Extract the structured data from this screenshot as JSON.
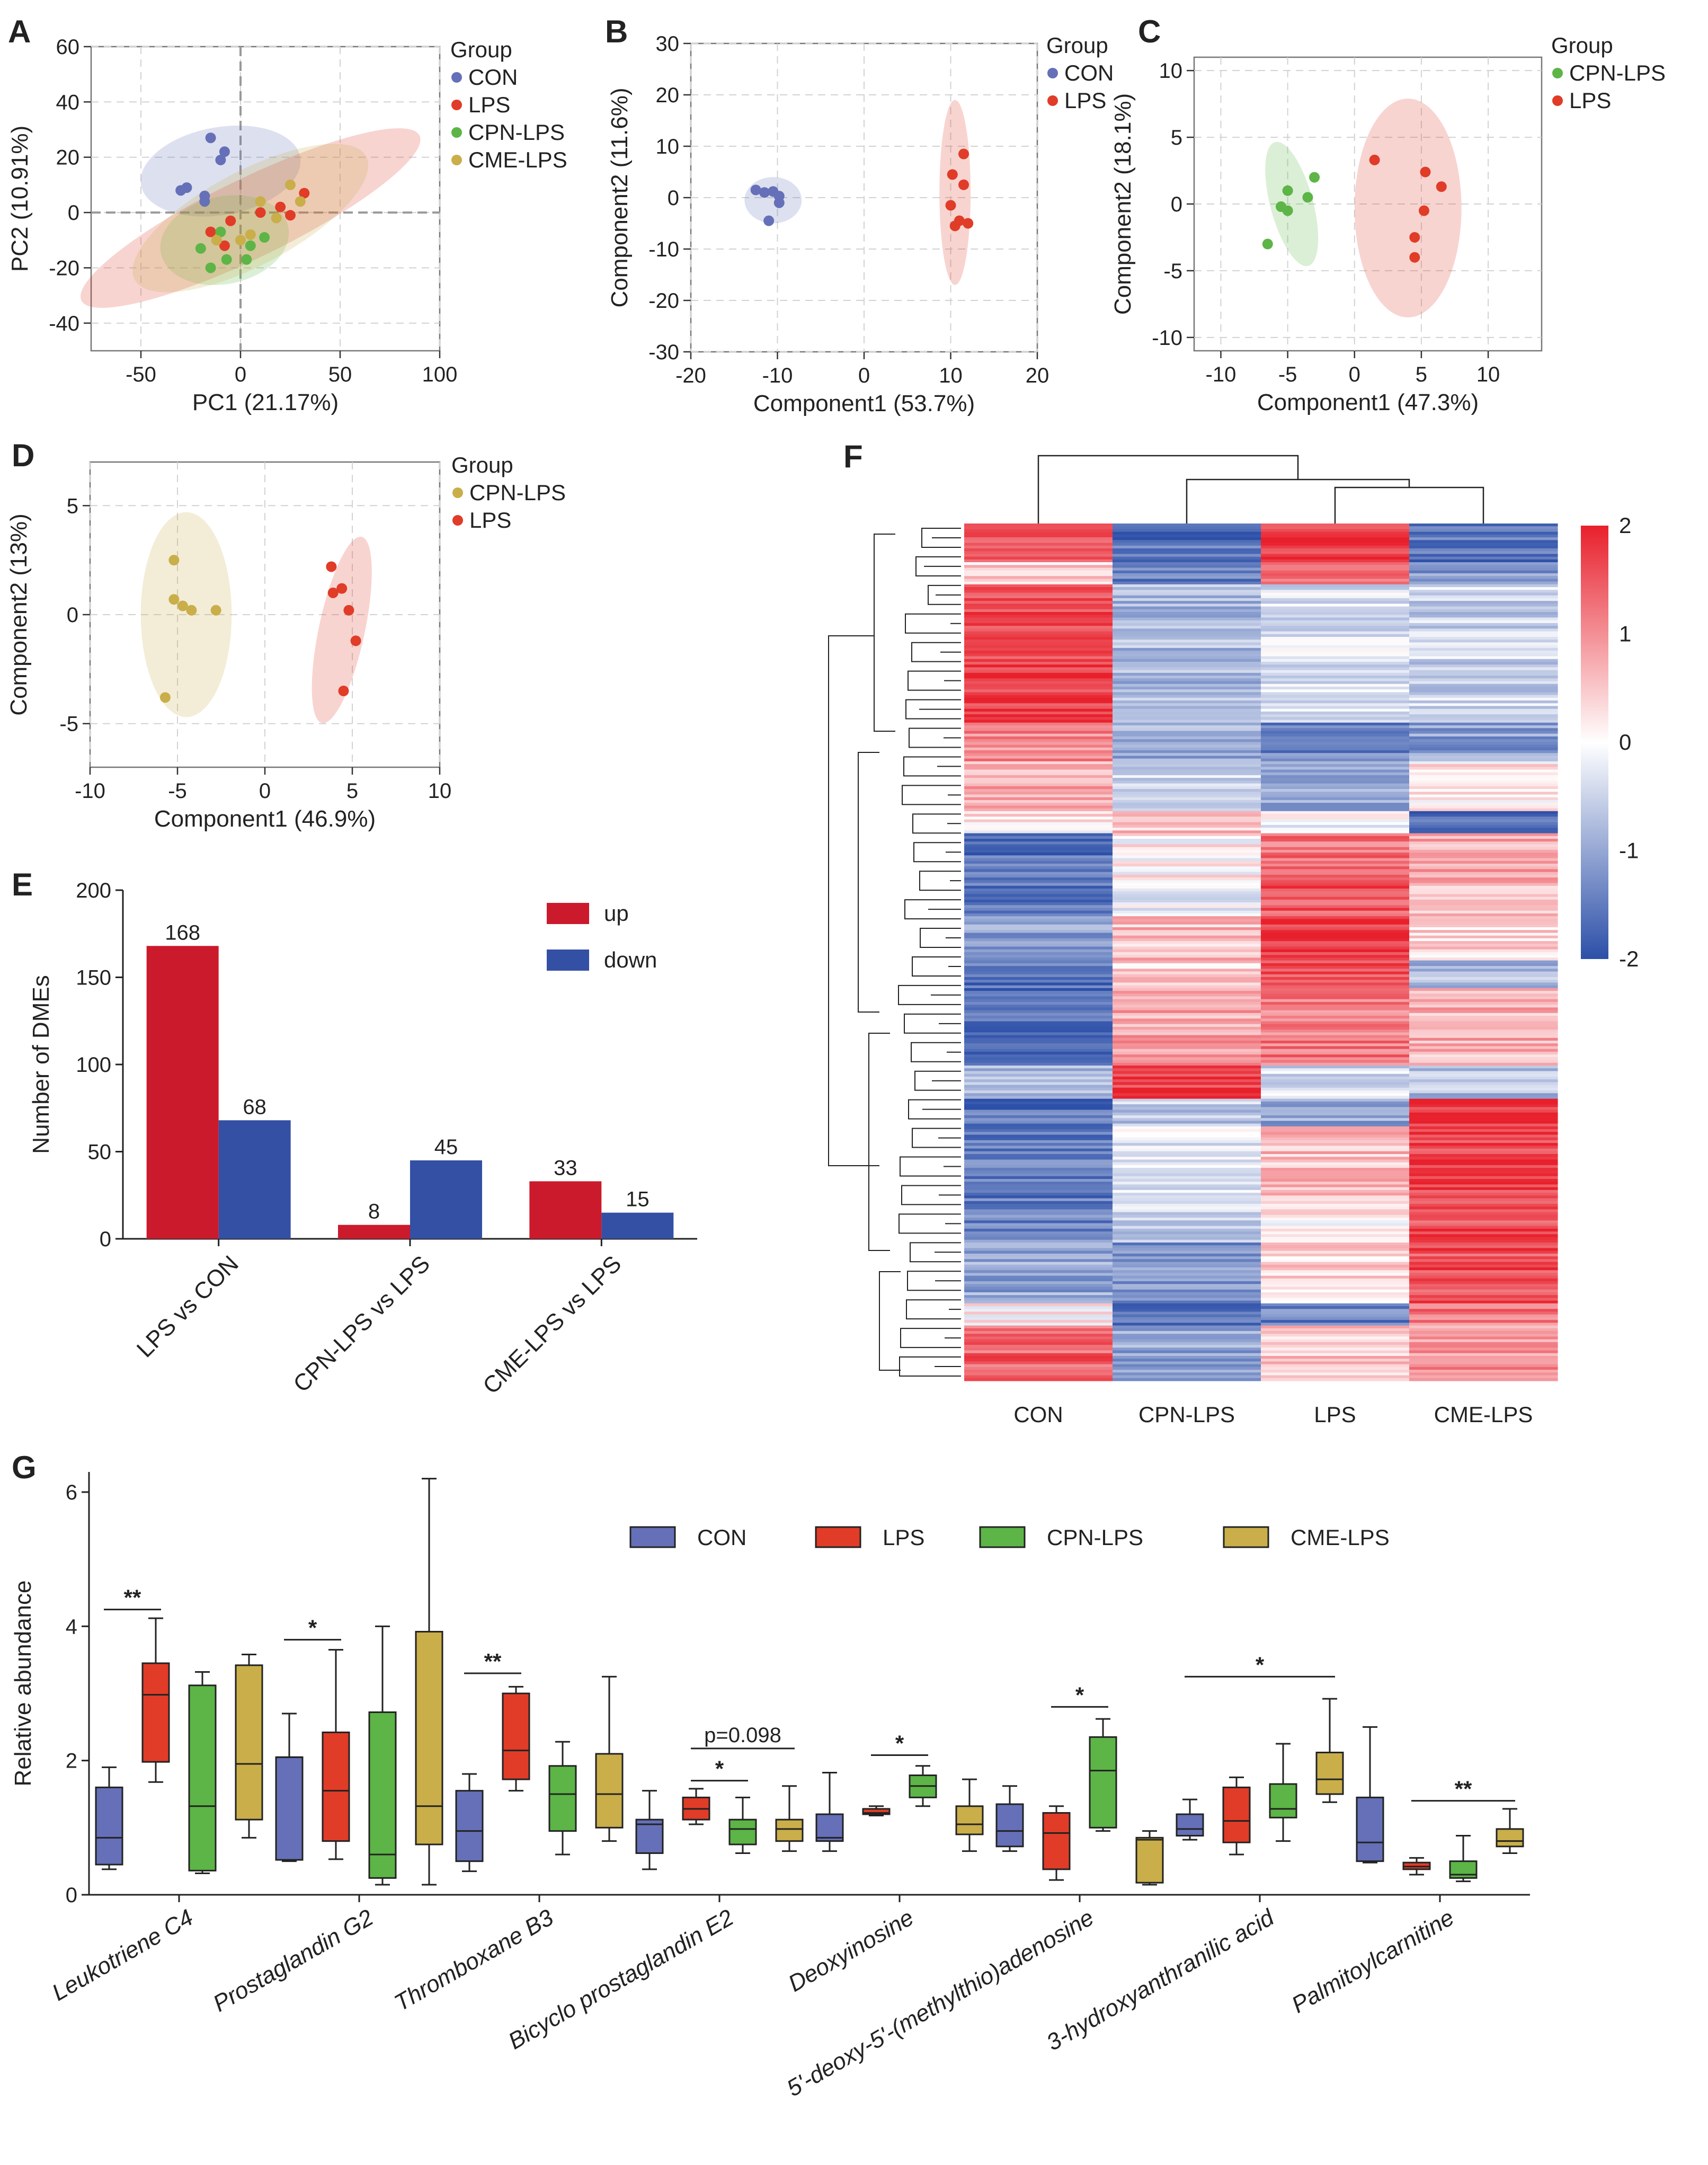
{
  "colors": {
    "con": "#6570b8",
    "lps": "#e03c28",
    "cpn": "#5cb546",
    "cme": "#c9ae4a",
    "up": "#cb1a2c",
    "down": "#3450a4",
    "heat_low": "#2c4fa8",
    "heat_mid": "#ffffff",
    "heat_high": "#e8202c"
  },
  "chart_data": [
    {
      "id": "A",
      "type": "scatter",
      "panel_label": "A",
      "xlabel": "PC1  (21.17%)",
      "ylabel": "PC2  (10.91%)",
      "xlim": [
        -75,
        100
      ],
      "ylim": [
        -50,
        60
      ],
      "xticks": [
        -50,
        0,
        50,
        100
      ],
      "yticks": [
        -40,
        -20,
        0,
        20,
        40,
        60
      ],
      "zero_lines": true,
      "legend": {
        "title": "Group",
        "labels": [
          "CON",
          "LPS",
          "CPN-LPS",
          "CME-LPS"
        ]
      },
      "series": [
        {
          "name": "CON",
          "color_key": "con",
          "points": [
            [
              -15,
              27
            ],
            [
              -8,
              22
            ],
            [
              -10,
              19
            ],
            [
              -27,
              9
            ],
            [
              -18,
              6
            ],
            [
              -30,
              8
            ],
            [
              -18,
              4
            ]
          ],
          "ellipse": {
            "cx": -10,
            "cy": 15,
            "rx": 16,
            "ry": 40,
            "angle": -80
          }
        },
        {
          "name": "LPS",
          "color_key": "lps",
          "points": [
            [
              -5,
              -3
            ],
            [
              10,
              0
            ],
            [
              20,
              2
            ],
            [
              32,
              7
            ],
            [
              25,
              -1
            ],
            [
              -15,
              -7
            ],
            [
              -8,
              -12
            ]
          ],
          "ellipse": {
            "cx": 5,
            "cy": -2,
            "rx": 87,
            "ry": 15,
            "angle": 26
          }
        },
        {
          "name": "CPN-LPS",
          "color_key": "cpn",
          "points": [
            [
              -10,
              -7
            ],
            [
              -20,
              -13
            ],
            [
              -7,
              -17
            ],
            [
              3,
              -17
            ],
            [
              12,
              -9
            ],
            [
              -15,
              -20
            ],
            [
              5,
              -12
            ]
          ],
          "ellipse": {
            "cx": -8,
            "cy": -10,
            "rx": 32,
            "ry": 16,
            "angle": 12
          }
        },
        {
          "name": "CME-LPS",
          "color_key": "cme",
          "points": [
            [
              25,
              10
            ],
            [
              30,
              4
            ],
            [
              10,
              4
            ],
            [
              5,
              -8
            ],
            [
              -12,
              -10
            ],
            [
              0,
              -10
            ],
            [
              18,
              -2
            ]
          ],
          "ellipse": {
            "cx": 5,
            "cy": -2,
            "rx": 60,
            "ry": 18,
            "angle": 28
          }
        }
      ]
    },
    {
      "id": "B",
      "type": "scatter",
      "panel_label": "B",
      "xlabel": "Component1 (53.7%)",
      "ylabel": "Component2 (11.6%)",
      "xlim": [
        -20,
        20
      ],
      "ylim": [
        -30,
        30
      ],
      "xticks": [
        -20,
        -10,
        0,
        10,
        20
      ],
      "yticks": [
        -30,
        -20,
        -10,
        0,
        10,
        20,
        30
      ],
      "legend": {
        "title": "Group",
        "labels": [
          "CON",
          "LPS"
        ]
      },
      "series": [
        {
          "name": "CON",
          "color_key": "con",
          "points": [
            [
              -12.5,
              1.5
            ],
            [
              -11.5,
              1
            ],
            [
              -10.5,
              1.2
            ],
            [
              -9.8,
              0.3
            ],
            [
              -9.8,
              -1
            ],
            [
              -11,
              -4.5
            ]
          ],
          "ellipse": {
            "cx": -10.5,
            "cy": -0.5,
            "rx": 3.3,
            "ry": 4.5,
            "angle": 0
          }
        },
        {
          "name": "LPS",
          "color_key": "lps",
          "points": [
            [
              11.5,
              8.5
            ],
            [
              10.2,
              4.5
            ],
            [
              11.5,
              2.5
            ],
            [
              10,
              -1.5
            ],
            [
              11,
              -4.5
            ],
            [
              12,
              -5
            ],
            [
              10.5,
              -5.5
            ]
          ],
          "ellipse": {
            "cx": 10.5,
            "cy": 1,
            "rx": 1.8,
            "ry": 18,
            "angle": 0
          }
        }
      ]
    },
    {
      "id": "C",
      "type": "scatter",
      "panel_label": "C",
      "xlabel": "Component1 (47.3%)",
      "ylabel": "Component2 (18.1%)",
      "xlim": [
        -12,
        14
      ],
      "ylim": [
        -11,
        11
      ],
      "xticks": [
        -10,
        -5,
        0,
        5,
        10
      ],
      "yticks": [
        -10,
        -5,
        0,
        5,
        10
      ],
      "legend": {
        "title": "Group",
        "labels": [
          "CPN-LPS",
          "LPS"
        ]
      },
      "series": [
        {
          "name": "CPN-LPS",
          "color_key": "cpn",
          "points": [
            [
              -3,
              2
            ],
            [
              -5,
              1
            ],
            [
              -3.5,
              0.5
            ],
            [
              -5.5,
              -0.2
            ],
            [
              -5,
              -0.5
            ],
            [
              -6.5,
              -3
            ]
          ],
          "ellipse": {
            "cx": -4.7,
            "cy": 0,
            "rx": 1.6,
            "ry": 4.8,
            "angle": 15
          }
        },
        {
          "name": "LPS",
          "color_key": "lps",
          "points": [
            [
              1.5,
              3.3
            ],
            [
              5.3,
              2.4
            ],
            [
              6.5,
              1.3
            ],
            [
              5.2,
              -0.5
            ],
            [
              4.5,
              -2.5
            ],
            [
              4.5,
              -4
            ]
          ],
          "ellipse": {
            "cx": 4,
            "cy": -0.3,
            "rx": 4,
            "ry": 8.2,
            "angle": 0
          }
        }
      ]
    },
    {
      "id": "D",
      "type": "scatter",
      "panel_label": "D",
      "xlabel": "Component1 (46.9%)",
      "ylabel": "Component2 (13%)",
      "xlim": [
        -10,
        10
      ],
      "ylim": [
        -7,
        7
      ],
      "xticks": [
        -10,
        -5,
        0,
        5,
        10
      ],
      "yticks": [
        -5,
        0,
        5
      ],
      "legend": {
        "title": "Group",
        "labels": [
          "CPN-LPS",
          "LPS"
        ]
      },
      "series": [
        {
          "name": "CPN-LPS",
          "color_key": "cme",
          "points": [
            [
              -5.2,
              2.5
            ],
            [
              -5.2,
              0.7
            ],
            [
              -4.7,
              0.4
            ],
            [
              -4.2,
              0.2
            ],
            [
              -2.8,
              0.2
            ],
            [
              -5.7,
              -3.8
            ]
          ],
          "ellipse": {
            "cx": -4.5,
            "cy": 0,
            "rx": 2.6,
            "ry": 4.7,
            "angle": 0
          }
        },
        {
          "name": "LPS",
          "color_key": "lps",
          "points": [
            [
              3.8,
              2.2
            ],
            [
              4.4,
              1.2
            ],
            [
              3.9,
              1
            ],
            [
              4.8,
              0.2
            ],
            [
              5.2,
              -1.2
            ],
            [
              4.5,
              -3.5
            ]
          ],
          "ellipse": {
            "cx": 4.4,
            "cy": -0.7,
            "rx": 1.3,
            "ry": 4.4,
            "angle": -12
          }
        }
      ]
    },
    {
      "id": "E",
      "type": "bar",
      "panel_label": "E",
      "ylabel": "Number of DMEs",
      "ylim": [
        0,
        200
      ],
      "yticks": [
        0,
        50,
        100,
        150,
        200
      ],
      "categories": [
        "LPS vs CON",
        "CPN-LPS vs LPS",
        "CME-LPS vs LPS"
      ],
      "series": [
        {
          "name": "up",
          "color_key": "up",
          "values": [
            168,
            8,
            33
          ],
          "labels": [
            "168",
            "8",
            "33"
          ]
        },
        {
          "name": "down",
          "color_key": "down",
          "values": [
            68,
            45,
            15
          ],
          "labels": [
            "68",
            "45",
            "15"
          ]
        }
      ]
    },
    {
      "id": "F",
      "type": "heatmap",
      "panel_label": "F",
      "columns": [
        "CON",
        "CPN-LPS",
        "LPS",
        "CME-LPS"
      ],
      "colorbar": {
        "min": -2,
        "max": 2,
        "ticks": [
          "2",
          "1",
          "0",
          "-1",
          "-2"
        ]
      },
      "row_segments": [
        {
          "rows": 14,
          "values": [
            1.6,
            -1.6,
            1.8,
            -1.6
          ]
        },
        {
          "rows": 8,
          "values": [
            0.4,
            -1.4,
            1.2,
            -1.2
          ]
        },
        {
          "rows": 50,
          "values": [
            1.7,
            -0.8,
            -0.3,
            -0.5
          ]
        },
        {
          "rows": 14,
          "values": [
            1.1,
            -0.9,
            -1.4,
            -1.1
          ]
        },
        {
          "rows": 18,
          "values": [
            0.8,
            -0.5,
            -0.9,
            0.2
          ]
        },
        {
          "rows": 8,
          "values": [
            0.2,
            0.5,
            -0.1,
            -1.6
          ]
        },
        {
          "rows": 18,
          "values": [
            -1.6,
            0.1,
            1.3,
            0.8
          ]
        },
        {
          "rows": 12,
          "values": [
            -1.5,
            -0.2,
            1.5,
            0.6
          ]
        },
        {
          "rows": 16,
          "values": [
            -1.1,
            0.6,
            1.8,
            0.4
          ]
        },
        {
          "rows": 10,
          "values": [
            -1.6,
            0.4,
            1.6,
            -0.8
          ]
        },
        {
          "rows": 28,
          "values": [
            -1.7,
            0.8,
            1.2,
            0.7
          ]
        },
        {
          "rows": 12,
          "values": [
            -0.8,
            1.8,
            -0.4,
            -0.7
          ]
        },
        {
          "rows": 10,
          "values": [
            -1.6,
            -0.6,
            -1.0,
            1.9
          ]
        },
        {
          "rows": 28,
          "values": [
            -1.5,
            -0.2,
            0.6,
            1.7
          ]
        },
        {
          "rows": 14,
          "values": [
            -1.4,
            -0.5,
            0.1,
            1.6
          ]
        },
        {
          "rows": 22,
          "values": [
            -1.0,
            -1.2,
            0.4,
            1.6
          ]
        },
        {
          "rows": 8,
          "values": [
            0.1,
            -1.6,
            -1.4,
            1.2
          ]
        },
        {
          "rows": 20,
          "values": [
            1.4,
            -1.0,
            0.5,
            1.0
          ]
        }
      ]
    },
    {
      "id": "G",
      "type": "box",
      "panel_label": "G",
      "ylabel": "Relative abundance",
      "ylim": [
        0,
        6.3
      ],
      "yticks": [
        0,
        2,
        4,
        6
      ],
      "groups": [
        "CON",
        "LPS",
        "CPN-LPS",
        "CME-LPS"
      ],
      "group_color_keys": [
        "con",
        "lps",
        "cpn",
        "cme"
      ],
      "metabolites": [
        {
          "name": "Leukotriene C4",
          "boxes": [
            [
              0.38,
              0.45,
              0.85,
              1.6,
              1.9
            ],
            [
              1.68,
              1.98,
              2.98,
              3.45,
              4.12
            ],
            [
              0.32,
              0.36,
              1.32,
              3.12,
              3.32
            ],
            [
              0.85,
              1.12,
              1.95,
              3.42,
              3.58
            ]
          ],
          "sig": {
            "text": "**",
            "from": 0,
            "to": 1,
            "y": 4.25
          }
        },
        {
          "name": "Prostaglandin G2",
          "boxes": [
            [
              0.5,
              0.52,
              2.05,
              2.05,
              2.7
            ],
            [
              0.53,
              0.8,
              1.55,
              2.42,
              3.65
            ],
            [
              0.15,
              0.25,
              0.6,
              2.72,
              4.0
            ],
            [
              0.15,
              0.75,
              1.32,
              3.92,
              6.2
            ]
          ],
          "sig": {
            "text": "*",
            "from": 0,
            "to": 1,
            "y": 3.8
          }
        },
        {
          "name": "Thromboxane B3",
          "boxes": [
            [
              0.35,
              0.5,
              0.95,
              1.55,
              1.8
            ],
            [
              1.55,
              1.72,
              2.15,
              3.0,
              3.1
            ],
            [
              0.6,
              0.95,
              1.5,
              1.92,
              2.28
            ],
            [
              0.8,
              1.0,
              1.5,
              2.1,
              3.25
            ]
          ],
          "sig": {
            "text": "**",
            "from": 0,
            "to": 1,
            "y": 3.3
          }
        },
        {
          "name": "Bicyclo prostaglandin E2",
          "boxes": [
            [
              0.38,
              0.62,
              1.05,
              1.12,
              1.55
            ],
            [
              1.05,
              1.12,
              1.28,
              1.45,
              1.58
            ],
            [
              0.62,
              0.75,
              0.98,
              1.12,
              1.45
            ],
            [
              0.65,
              0.8,
              0.98,
              1.12,
              1.62
            ]
          ],
          "sig": {
            "text": "*",
            "from": 1,
            "to": 2,
            "y": 1.7
          },
          "sig2": {
            "text": "p=0.098",
            "from": 1,
            "to": 3,
            "y": 2.18
          }
        },
        {
          "name": "Deoxyinosine",
          "boxes": [
            [
              0.65,
              0.8,
              0.85,
              1.2,
              1.82
            ],
            [
              1.18,
              1.2,
              1.22,
              1.28,
              1.32
            ],
            [
              1.32,
              1.45,
              1.62,
              1.78,
              1.92
            ],
            [
              0.65,
              0.9,
              1.05,
              1.32,
              1.72
            ]
          ],
          "sig": {
            "text": "*",
            "from": 1,
            "to": 2,
            "y": 2.08
          }
        },
        {
          "name": "5'-deoxy-5'-(methylthio)adenosine",
          "boxes": [
            [
              0.65,
              0.72,
              0.95,
              1.35,
              1.62
            ],
            [
              0.22,
              0.38,
              0.92,
              1.22,
              1.32
            ],
            [
              0.95,
              1.0,
              1.85,
              2.35,
              2.62
            ],
            [
              0.15,
              0.18,
              0.82,
              0.85,
              0.95
            ]
          ],
          "sig": {
            "text": "*",
            "from": 1,
            "to": 2,
            "y": 2.8
          }
        },
        {
          "name": "3-hydroxyanthranilic acid",
          "boxes": [
            [
              0.82,
              0.88,
              0.98,
              1.2,
              1.42
            ],
            [
              0.6,
              0.78,
              1.1,
              1.6,
              1.75
            ],
            [
              0.8,
              1.15,
              1.28,
              1.65,
              2.25
            ],
            [
              1.38,
              1.5,
              1.72,
              2.12,
              2.92
            ]
          ],
          "sig": {
            "text": "*",
            "from": 0,
            "to": 3,
            "y": 3.25
          }
        },
        {
          "name": "Palmitoylcarnitine",
          "boxes": [
            [
              0.48,
              0.5,
              0.78,
              1.45,
              2.5
            ],
            [
              0.3,
              0.38,
              0.42,
              0.48,
              0.55
            ],
            [
              0.2,
              0.25,
              0.3,
              0.5,
              0.88
            ],
            [
              0.62,
              0.72,
              0.8,
              0.98,
              1.28
            ]
          ],
          "sig": {
            "text": "**",
            "from": 1,
            "to": 3,
            "y": 1.4
          }
        }
      ],
      "legend": {
        "labels": [
          "CON",
          "LPS",
          "CPN-LPS",
          "CME-LPS"
        ]
      }
    }
  ]
}
